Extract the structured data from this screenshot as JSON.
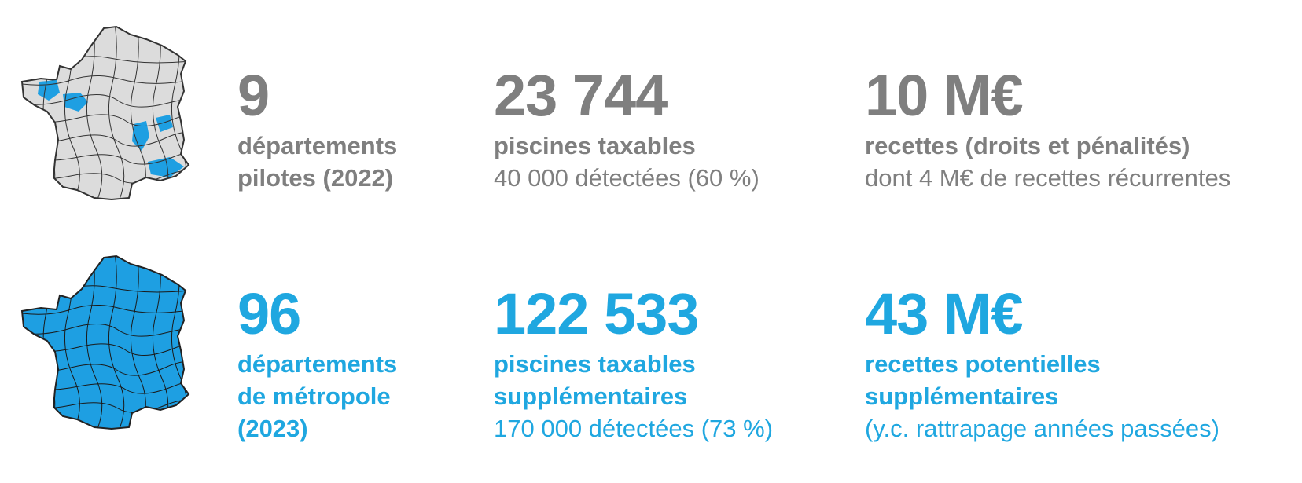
{
  "colors": {
    "gray_text": "#7f7f7f",
    "blue_text": "#1fa7e0",
    "map_gray_fill": "#dcdcdc",
    "map_blue_fill": "#1e9fe2",
    "map_border": "#333333"
  },
  "rows": [
    {
      "map_icon": "france-map-pilot-departments-icon",
      "stats": [
        {
          "value": "9",
          "label_lines": [
            "départements",
            "pilotes (2022)"
          ],
          "sub_lines": []
        },
        {
          "value": "23 744",
          "label_lines": [
            "piscines taxables"
          ],
          "sub_lines": [
            "40 000 détectées (60 %)"
          ]
        },
        {
          "value": "10 M€",
          "label_lines": [
            "recettes (droits et pénalités)"
          ],
          "sub_lines": [
            "dont 4 M€ de recettes récurrentes"
          ]
        }
      ]
    },
    {
      "map_icon": "france-map-all-departments-icon",
      "stats": [
        {
          "value": "96",
          "label_lines": [
            "départements",
            "de métropole",
            "(2023)"
          ],
          "sub_lines": []
        },
        {
          "value": "122 533",
          "label_lines": [
            "piscines taxables",
            "supplémentaires"
          ],
          "sub_lines": [
            "170 000 détectées (73 %)"
          ]
        },
        {
          "value": "43 M€",
          "label_lines": [
            "recettes potentielles",
            "supplémentaires"
          ],
          "sub_lines": [
            "(y.c. rattrapage années passées)"
          ]
        }
      ]
    }
  ]
}
